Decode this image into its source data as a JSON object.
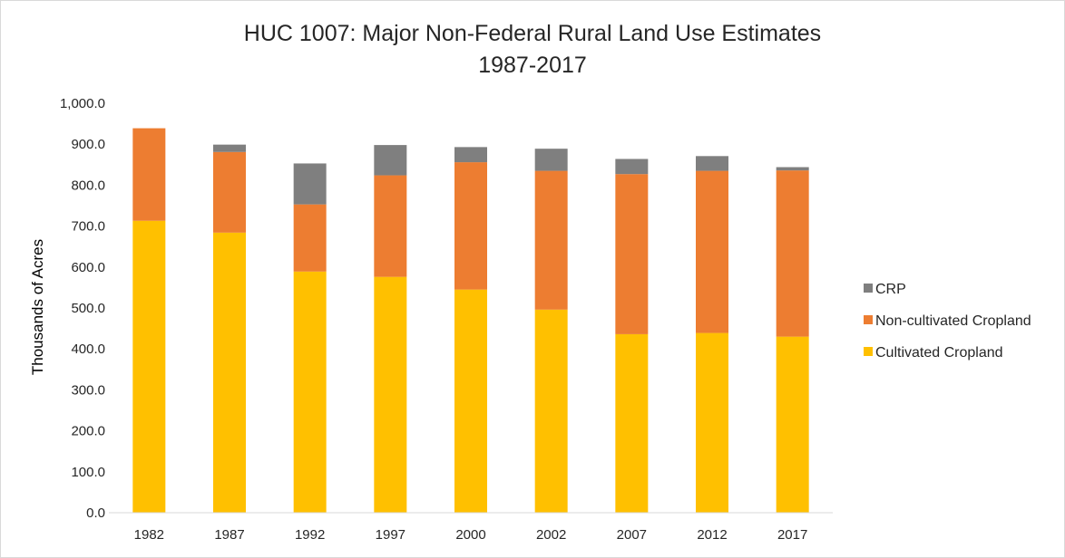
{
  "chart_data": {
    "type": "bar",
    "stacked": true,
    "title_line1": "HUC 1007: Major Non-Federal Rural Land Use Estimates",
    "title_line2": "1987-2017",
    "xlabel": "",
    "ylabel": "Thousands of Acres",
    "ylim": [
      0,
      1000
    ],
    "yticks": [
      0,
      100,
      200,
      300,
      400,
      500,
      600,
      700,
      800,
      900,
      1000
    ],
    "ytick_labels": [
      "0.0",
      "100.0",
      "200.0",
      "300.0",
      "400.0",
      "500.0",
      "600.0",
      "700.0",
      "800.0",
      "900.0",
      "1,000.0"
    ],
    "categories": [
      "1982",
      "1987",
      "1992",
      "1997",
      "2000",
      "2002",
      "2007",
      "2012",
      "2017"
    ],
    "series": [
      {
        "name": "Cultivated Cropland",
        "color": "#ffc000",
        "values": [
          713,
          684,
          589,
          576,
          545,
          496,
          436,
          439,
          430
        ]
      },
      {
        "name": "Non-cultivated Cropland",
        "color": "#ed7d31",
        "values": [
          226,
          197,
          164,
          248,
          311,
          339,
          391,
          396,
          406
        ]
      },
      {
        "name": "CRP",
        "color": "#7f7f7f",
        "values": [
          0,
          18,
          100,
          74,
          37,
          54,
          37,
          36,
          8
        ]
      }
    ],
    "legend_position": "right",
    "legend_order": [
      "CRP",
      "Non-cultivated Cropland",
      "Cultivated Cropland"
    ],
    "grid": false
  }
}
